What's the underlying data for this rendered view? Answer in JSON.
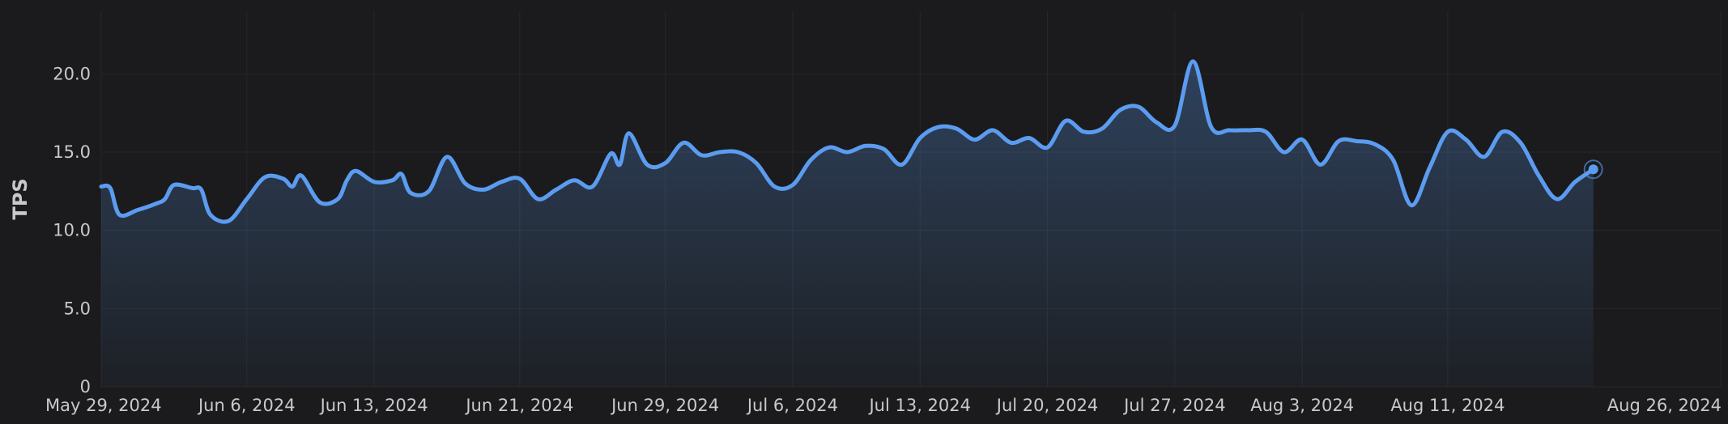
{
  "chart_data": {
    "type": "area",
    "title": "",
    "xlabel": "",
    "ylabel": "TPS",
    "ylim": [
      0,
      24
    ],
    "xlim": [
      "2024-05-29",
      "2024-08-26"
    ],
    "y_ticks": [
      {
        "value": 0,
        "label": "0"
      },
      {
        "value": 5,
        "label": "5.0"
      },
      {
        "value": 10,
        "label": "10.0"
      },
      {
        "value": 15,
        "label": "15.0"
      },
      {
        "value": 20,
        "label": "20.0"
      }
    ],
    "x_ticks": [
      {
        "date": "2024-05-29",
        "label": "May 29, 2024"
      },
      {
        "date": "2024-06-06",
        "label": "Jun 6, 2024"
      },
      {
        "date": "2024-06-13",
        "label": "Jun 13, 2024"
      },
      {
        "date": "2024-06-21",
        "label": "Jun 21, 2024"
      },
      {
        "date": "2024-06-29",
        "label": "Jun 29, 2024"
      },
      {
        "date": "2024-07-06",
        "label": "Jul 6, 2024"
      },
      {
        "date": "2024-07-13",
        "label": "Jul 13, 2024"
      },
      {
        "date": "2024-07-20",
        "label": "Jul 20, 2024"
      },
      {
        "date": "2024-07-27",
        "label": "Jul 27, 2024"
      },
      {
        "date": "2024-08-03",
        "label": "Aug 3, 2024"
      },
      {
        "date": "2024-08-11",
        "label": "Aug 11, 2024"
      },
      {
        "date": "2024-08-26",
        "label": "Aug 26, 2024"
      }
    ],
    "grid": true,
    "legend": "none",
    "line_color": "#5b9cf0",
    "series": [
      {
        "points": [
          [
            "2024-05-29",
            12.8
          ],
          [
            "2024-05-29T12:00",
            12.7
          ],
          [
            "2024-05-30",
            11.0
          ],
          [
            "2024-05-31",
            11.3
          ],
          [
            "2024-06-01",
            11.7
          ],
          [
            "2024-06-01T12:00",
            12.0
          ],
          [
            "2024-06-02",
            12.9
          ],
          [
            "2024-06-03",
            12.7
          ],
          [
            "2024-06-03T12:00",
            12.6
          ],
          [
            "2024-06-04",
            11.0
          ],
          [
            "2024-06-05",
            10.6
          ],
          [
            "2024-06-06",
            12.0
          ],
          [
            "2024-06-07",
            13.4
          ],
          [
            "2024-06-08",
            13.3
          ],
          [
            "2024-06-08T12:00",
            12.8
          ],
          [
            "2024-06-09",
            13.5
          ],
          [
            "2024-06-10",
            11.8
          ],
          [
            "2024-06-11",
            12.0
          ],
          [
            "2024-06-11T12:00",
            13.2
          ],
          [
            "2024-06-12",
            13.8
          ],
          [
            "2024-06-13",
            13.1
          ],
          [
            "2024-06-14",
            13.2
          ],
          [
            "2024-06-14T12:00",
            13.6
          ],
          [
            "2024-06-15",
            12.4
          ],
          [
            "2024-06-16",
            12.5
          ],
          [
            "2024-06-17",
            14.7
          ],
          [
            "2024-06-18",
            13.0
          ],
          [
            "2024-06-19",
            12.6
          ],
          [
            "2024-06-20",
            13.1
          ],
          [
            "2024-06-21",
            13.3
          ],
          [
            "2024-06-22",
            12.0
          ],
          [
            "2024-06-23",
            12.6
          ],
          [
            "2024-06-24",
            13.2
          ],
          [
            "2024-06-25",
            12.8
          ],
          [
            "2024-06-26",
            14.9
          ],
          [
            "2024-06-26T12:00",
            14.2
          ],
          [
            "2024-06-27",
            16.2
          ],
          [
            "2024-06-28",
            14.2
          ],
          [
            "2024-06-29",
            14.3
          ],
          [
            "2024-06-30",
            15.6
          ],
          [
            "2024-07-01",
            14.8
          ],
          [
            "2024-07-02",
            15.0
          ],
          [
            "2024-07-03",
            15.0
          ],
          [
            "2024-07-04",
            14.3
          ],
          [
            "2024-07-05",
            12.8
          ],
          [
            "2024-07-06",
            12.9
          ],
          [
            "2024-07-07",
            14.5
          ],
          [
            "2024-07-08",
            15.3
          ],
          [
            "2024-07-09",
            15.0
          ],
          [
            "2024-07-10",
            15.4
          ],
          [
            "2024-07-11",
            15.2
          ],
          [
            "2024-07-12",
            14.2
          ],
          [
            "2024-07-13",
            15.9
          ],
          [
            "2024-07-14",
            16.6
          ],
          [
            "2024-07-15",
            16.5
          ],
          [
            "2024-07-16",
            15.8
          ],
          [
            "2024-07-17",
            16.4
          ],
          [
            "2024-07-18",
            15.6
          ],
          [
            "2024-07-19",
            15.9
          ],
          [
            "2024-07-20",
            15.3
          ],
          [
            "2024-07-21",
            17.0
          ],
          [
            "2024-07-22",
            16.3
          ],
          [
            "2024-07-23",
            16.5
          ],
          [
            "2024-07-24",
            17.7
          ],
          [
            "2024-07-25",
            17.9
          ],
          [
            "2024-07-26",
            16.9
          ],
          [
            "2024-07-27",
            16.7
          ],
          [
            "2024-07-28",
            20.8
          ],
          [
            "2024-07-29",
            16.6
          ],
          [
            "2024-07-30",
            16.4
          ],
          [
            "2024-07-31",
            16.4
          ],
          [
            "2024-08-01",
            16.3
          ],
          [
            "2024-08-02",
            15.0
          ],
          [
            "2024-08-03",
            15.8
          ],
          [
            "2024-08-04",
            14.2
          ],
          [
            "2024-08-05",
            15.7
          ],
          [
            "2024-08-06",
            15.7
          ],
          [
            "2024-08-07",
            15.5
          ],
          [
            "2024-08-08",
            14.5
          ],
          [
            "2024-08-09",
            11.6
          ],
          [
            "2024-08-10",
            14.0
          ],
          [
            "2024-08-11",
            16.3
          ],
          [
            "2024-08-12",
            15.8
          ],
          [
            "2024-08-13",
            14.7
          ],
          [
            "2024-08-14",
            16.3
          ],
          [
            "2024-08-15",
            15.6
          ],
          [
            "2024-08-16",
            13.5
          ],
          [
            "2024-08-17",
            12.0
          ],
          [
            "2024-08-18",
            13.1
          ],
          [
            "2024-08-19",
            13.9
          ]
        ]
      }
    ]
  }
}
